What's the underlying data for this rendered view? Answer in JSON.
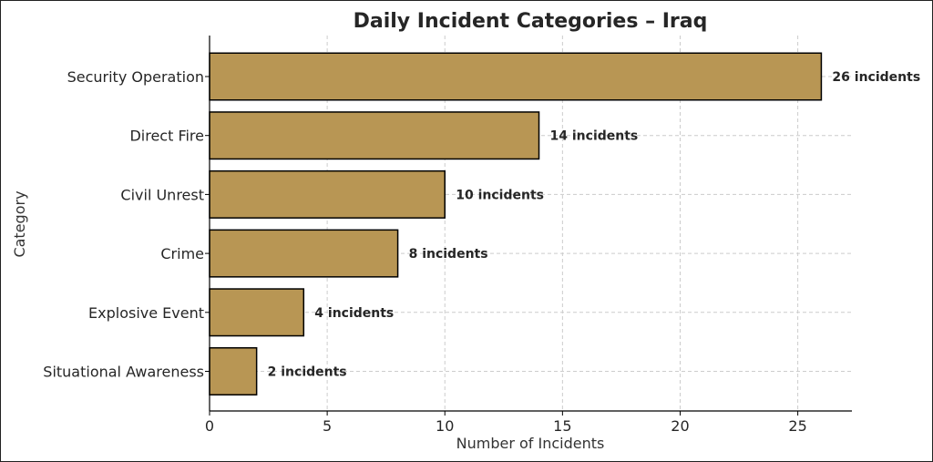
{
  "chart_data": {
    "type": "bar",
    "orientation": "horizontal",
    "title": "Daily Incident Categories – Iraq",
    "xlabel": "Number of Incidents",
    "ylabel": "Category",
    "categories": [
      "Security Operation",
      "Direct Fire",
      "Civil Unrest",
      "Crime",
      "Explosive Event",
      "Situational Awareness"
    ],
    "values": [
      26,
      14,
      10,
      8,
      4,
      2
    ],
    "data_labels": [
      "26 incidents",
      "14 incidents",
      "10 incidents",
      "8 incidents",
      "4 incidents",
      "2 incidents"
    ],
    "xlim": [
      0,
      27.3
    ],
    "xticks": [
      0,
      5,
      10,
      15,
      20,
      25
    ],
    "grid": true,
    "bar_color": "#b89654",
    "bar_edge_color": "#000000",
    "grid_color": "#cccccc"
  }
}
